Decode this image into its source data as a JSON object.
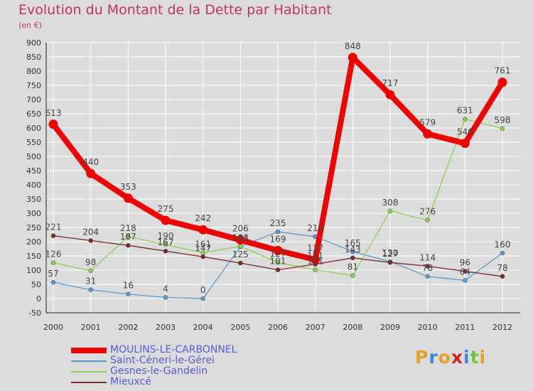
{
  "title": "Evolution du Montant de la Dette par Habitant",
  "subtitle": "(en €)",
  "logo": {
    "letters": [
      "P",
      "r",
      "o",
      "x",
      "i",
      "t",
      "i"
    ],
    "colors": [
      "#e8a024",
      "#3a8ad8",
      "#e8a024",
      "#d82020",
      "#3a8ad8",
      "#7ac03a",
      "#e8a024"
    ]
  },
  "chart_data": {
    "type": "line",
    "title": "Evolution du Montant de la Dette par Habitant",
    "subtitle": "(en €)",
    "x": [
      "2000",
      "2001",
      "2002",
      "2003",
      "2004",
      "2005",
      "2006",
      "2007",
      "2008",
      "2009",
      "2010",
      "2011",
      "2012"
    ],
    "ylim": [
      -50,
      900
    ],
    "yticks": [
      "-50",
      "0",
      "50",
      "100",
      "150",
      "200",
      "250",
      "300",
      "350",
      "400",
      "450",
      "500",
      "550",
      "600",
      "650",
      "700",
      "750",
      "800",
      "850",
      "900"
    ],
    "grid": true,
    "legend_position": "bottom-left",
    "series": [
      {
        "name": "MOULINS-LE-CARBONNEL",
        "color": "#ee0000",
        "bold": true,
        "values": [
          613,
          440,
          353,
          275,
          242,
          206,
          169,
          137,
          848,
          717,
          579,
          546,
          761
        ],
        "labels": [
          "613",
          "440",
          "353",
          "275",
          "242",
          "206",
          "169",
          "137",
          "848",
          "717",
          "579",
          "546",
          "761"
        ]
      },
      {
        "name": "Saint-Céneri-le-Gérei",
        "color": "#5a9ad0",
        "values": [
          57,
          31,
          16,
          4,
          0,
          183,
          235,
          218,
          165,
          130,
          78,
          64,
          160
        ],
        "labels": [
          "57",
          "31",
          "16",
          "4",
          "0",
          "183",
          "235",
          "218",
          "165",
          "130",
          "78",
          "64",
          "160"
        ]
      },
      {
        "name": "Gesnes-le-Gandelin",
        "color": "#8ad050",
        "values": [
          126,
          98,
          218,
          190,
          161,
          184,
          127,
          101,
          81,
          308,
          276,
          631,
          598
        ],
        "labels": [
          "126",
          "98",
          "218",
          "190",
          "161",
          "184",
          "127",
          "101",
          "81",
          "308",
          "276",
          "631",
          "598"
        ]
      },
      {
        "name": "Mieuxcé",
        "color": "#7a2a2a",
        "values": [
          221,
          204,
          187,
          167,
          147,
          125,
          101,
          121,
          143,
          127,
          114,
          96,
          78
        ],
        "labels": [
          "221",
          "204",
          "187",
          "167",
          "147",
          "125",
          "101",
          "121",
          "143",
          "127",
          "114",
          "96",
          "78"
        ]
      }
    ]
  }
}
